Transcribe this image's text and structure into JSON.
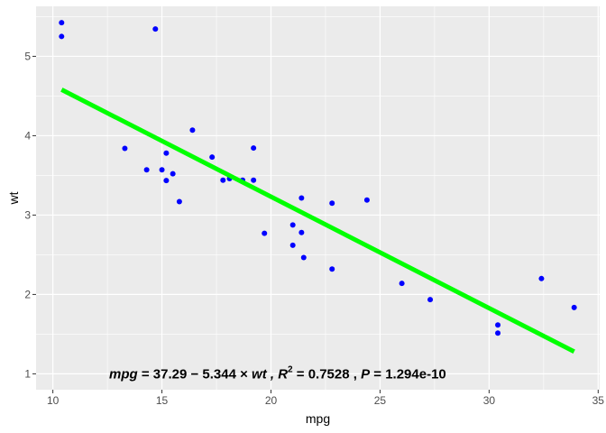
{
  "chart_data": {
    "type": "scatter",
    "title": "",
    "xlabel": "mpg",
    "ylabel": "wt",
    "xlim": [
      9.23,
      35.07
    ],
    "ylim": [
      0.8,
      5.63
    ],
    "x_ticks": [
      10,
      15,
      20,
      25,
      30,
      35
    ],
    "y_ticks": [
      1,
      2,
      3,
      4,
      5
    ],
    "grid": true,
    "legend": null,
    "points": {
      "color": "#0000ff",
      "x": [
        21.0,
        21.0,
        22.8,
        21.4,
        18.7,
        18.1,
        14.3,
        24.4,
        22.8,
        19.2,
        17.8,
        16.4,
        17.3,
        15.2,
        10.4,
        10.4,
        14.7,
        32.4,
        30.4,
        33.9,
        21.5,
        15.5,
        15.2,
        13.3,
        19.2,
        27.3,
        26.0,
        30.4,
        15.8,
        19.7,
        15.0,
        21.4
      ],
      "y": [
        2.62,
        2.875,
        2.32,
        3.215,
        3.44,
        3.46,
        3.57,
        3.19,
        3.15,
        3.44,
        3.44,
        4.07,
        3.73,
        3.78,
        5.25,
        5.424,
        5.345,
        2.2,
        1.615,
        1.835,
        2.465,
        3.52,
        3.435,
        3.84,
        3.845,
        1.935,
        2.14,
        1.513,
        3.17,
        2.77,
        3.57,
        2.78
      ]
    },
    "fit_line": {
      "color": "#00ff00",
      "x": [
        10.4,
        33.9
      ],
      "y": [
        4.58,
        1.28
      ]
    },
    "annotation": {
      "text": "mpg = 37.29 − 5.344 × wt , R² = 0.7528 , P = 1.294e-10",
      "lhs": "mpg",
      "eq": " = 37.29 − 5.344 × ",
      "var": "wt",
      "r2_label": " , R",
      "r2_sup": "2",
      "r2_value": " = 0.7528 , ",
      "p_label": "P",
      "p_value": " = 1.294e-10",
      "x": 12.8,
      "y": 1.0
    }
  }
}
